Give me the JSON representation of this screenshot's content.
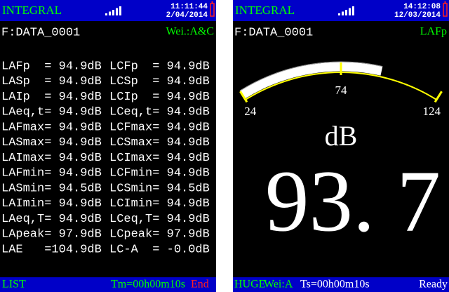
{
  "screens": [
    {
      "mode": "INTEGRAL",
      "time": "11:11:44",
      "date": "2/04/2014",
      "file": "F:DATA_0001",
      "weighting": "Wei.:A&C",
      "table": {
        "rows": [
          [
            "LAFp  = 94.9dB",
            "LCFp  = 94.9dB"
          ],
          [
            "LASp  = 94.9dB",
            "LCSp  = 94.9dB"
          ],
          [
            "LAIp  = 94.9dB",
            "LCIp  = 94.9dB"
          ],
          [
            "LAeq,t= 94.9dB",
            "LCeq,t= 94.9dB"
          ],
          [
            "LAFmax= 94.9dB",
            "LCFmax= 94.9dB"
          ],
          [
            "LASmax= 94.9dB",
            "LCSmax= 94.9dB"
          ],
          [
            "LAImax= 94.9dB",
            "LCImax= 94.9dB"
          ],
          [
            "LAFmin= 94.9dB",
            "LCFmin= 94.9dB"
          ],
          [
            "LASmin= 94.5dB",
            "LCSmin= 94.5dB"
          ],
          [
            "LAImin= 94.9dB",
            "LCImin= 94.9dB"
          ],
          [
            "LAeq,T= 94.9dB",
            "LCeq,T= 94.9dB"
          ],
          [
            "LApeak= 97.9dB",
            "LCpeak= 97.9dB"
          ],
          [
            "LAE   =104.9dB",
            "LC-A  = -0.0dB"
          ]
        ]
      },
      "footer": {
        "view": "LIST",
        "timer": "Tm=00h00m10s",
        "status": "End"
      }
    },
    {
      "mode": "INTEGRAL",
      "time": "14:12:08",
      "date": "12/03/2014",
      "file": "F:DATA_0001",
      "weighting": "LAFp",
      "gauge": {
        "ticks": [
          24,
          74,
          124
        ]
      },
      "unit": "dB",
      "reading": {
        "value": 93.7,
        "label": "93. 7"
      },
      "footer": {
        "view": "HUGE",
        "weighting": "Wei:A",
        "timer": "Ts=00h00m10s",
        "status": "Ready"
      }
    }
  ]
}
